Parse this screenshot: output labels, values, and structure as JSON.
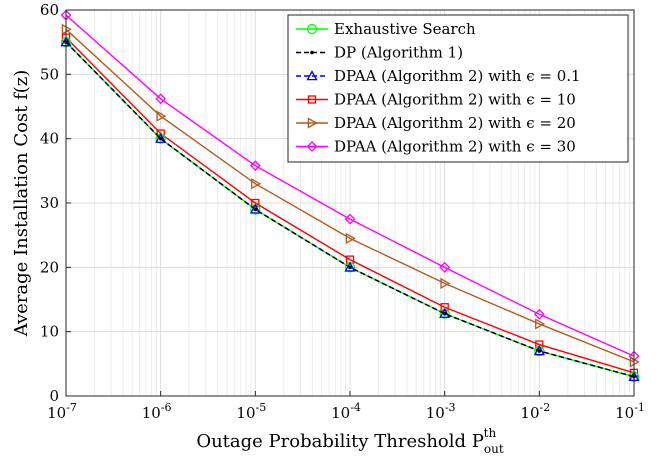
{
  "chart_data": {
    "type": "line",
    "title": "",
    "xlabel": "Outage Probability Threshold P",
    "xlabel_sup": "th",
    "xlabel_sub": "out",
    "ylabel": "Average Installation Cost f(z)",
    "xscale": "log",
    "xlim": [
      1e-07,
      0.1
    ],
    "ylim": [
      0,
      60
    ],
    "grid": true,
    "legend_position": "top-right",
    "x_ticks": [
      {
        "base": "10",
        "exp": "-7"
      },
      {
        "base": "10",
        "exp": "-6"
      },
      {
        "base": "10",
        "exp": "-5"
      },
      {
        "base": "10",
        "exp": "-4"
      },
      {
        "base": "10",
        "exp": "-3"
      },
      {
        "base": "10",
        "exp": "-2"
      },
      {
        "base": "10",
        "exp": "-1"
      }
    ],
    "y_ticks": [
      "0",
      "10",
      "20",
      "30",
      "40",
      "50",
      "60"
    ],
    "x": [
      1e-07,
      1e-06,
      1e-05,
      0.0001,
      0.001,
      0.01,
      0.1
    ],
    "series": [
      {
        "name": "Exhaustive Search",
        "color": "#00ff00",
        "marker": "circle",
        "dash": "solid",
        "values": [
          55.0,
          40.0,
          29.0,
          20.0,
          12.8,
          7.0,
          3.0
        ]
      },
      {
        "name": "DP (Algorithm 1)",
        "color": "#000000",
        "marker": "dot",
        "dash": "dashed",
        "values": [
          55.0,
          40.0,
          29.0,
          20.0,
          12.8,
          7.0,
          3.0
        ]
      },
      {
        "name": "DPAA (Algorithm 2) with ϵ = 0.1",
        "color": "#0000ff",
        "marker": "triangle",
        "dash": "dashed",
        "values": [
          55.0,
          40.0,
          29.0,
          20.0,
          12.8,
          7.0,
          3.0
        ]
      },
      {
        "name": "DPAA (Algorithm 2) with ϵ = 10",
        "color": "#ff0000",
        "marker": "square",
        "dash": "solid",
        "values": [
          55.7,
          40.8,
          30.0,
          21.2,
          13.8,
          8.0,
          3.6
        ]
      },
      {
        "name": "DPAA (Algorithm 2) with ϵ = 20",
        "color": "#b35a1f",
        "marker": "triangle-right",
        "dash": "solid",
        "values": [
          57.0,
          43.5,
          33.0,
          24.5,
          17.5,
          11.2,
          5.3
        ]
      },
      {
        "name": "DPAA (Algorithm 2) with ϵ = 30",
        "color": "#ff00ff",
        "marker": "diamond",
        "dash": "solid",
        "values": [
          59.2,
          46.2,
          35.8,
          27.5,
          20.0,
          12.7,
          6.2
        ]
      }
    ]
  }
}
